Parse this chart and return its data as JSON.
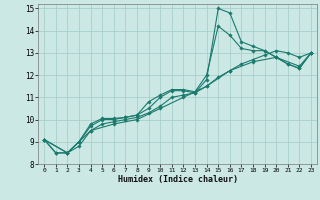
{
  "xlabel": "Humidex (Indice chaleur)",
  "ylabel": "",
  "background_color": "#cce8e4",
  "grid_color": "#aacfcb",
  "line_color": "#1a7a6e",
  "xlim": [
    -0.5,
    23.5
  ],
  "ylim": [
    8,
    15.2
  ],
  "xticks": [
    0,
    1,
    2,
    3,
    4,
    5,
    6,
    7,
    8,
    9,
    10,
    11,
    12,
    13,
    14,
    15,
    16,
    17,
    18,
    19,
    20,
    21,
    22,
    23
  ],
  "yticks": [
    8,
    9,
    10,
    11,
    12,
    13,
    14,
    15
  ],
  "series": [
    {
      "x": [
        0,
        1,
        2,
        3,
        4,
        5,
        6,
        7,
        8,
        9,
        10,
        11,
        12,
        13,
        14,
        15,
        16,
        17,
        18,
        19,
        20,
        21,
        22,
        23
      ],
      "y": [
        9.1,
        8.5,
        8.5,
        9.0,
        9.7,
        10.0,
        10.0,
        10.1,
        10.2,
        10.5,
        11.0,
        11.3,
        11.3,
        11.2,
        11.8,
        15.0,
        14.8,
        13.5,
        13.3,
        13.1,
        12.8,
        12.5,
        12.3,
        13.0
      ]
    },
    {
      "x": [
        0,
        1,
        2,
        3,
        4,
        5,
        6,
        7,
        8,
        9,
        10,
        11,
        12,
        13,
        14,
        15,
        16,
        17,
        18,
        19,
        20,
        21,
        22,
        23
      ],
      "y": [
        9.1,
        8.5,
        8.5,
        9.0,
        9.8,
        10.05,
        10.05,
        10.1,
        10.2,
        10.8,
        11.1,
        11.35,
        11.35,
        11.25,
        12.0,
        14.2,
        13.8,
        13.2,
        13.1,
        13.1,
        12.8,
        12.5,
        12.3,
        13.0
      ]
    },
    {
      "x": [
        0,
        2,
        3,
        4,
        5,
        6,
        7,
        8,
        9,
        10,
        11,
        12,
        13,
        14,
        15,
        16,
        17,
        18,
        19,
        20,
        21,
        22,
        23
      ],
      "y": [
        9.1,
        8.5,
        8.8,
        9.5,
        9.8,
        9.9,
        10.0,
        10.1,
        10.3,
        10.6,
        11.0,
        11.1,
        11.2,
        11.5,
        11.9,
        12.2,
        12.5,
        12.7,
        12.9,
        13.1,
        13.0,
        12.8,
        13.0
      ]
    },
    {
      "x": [
        0,
        2,
        4,
        6,
        8,
        10,
        12,
        14,
        16,
        18,
        20,
        22,
        23
      ],
      "y": [
        9.1,
        8.5,
        9.5,
        9.8,
        10.0,
        10.5,
        11.0,
        11.5,
        12.2,
        12.6,
        12.8,
        12.4,
        13.0
      ]
    }
  ]
}
